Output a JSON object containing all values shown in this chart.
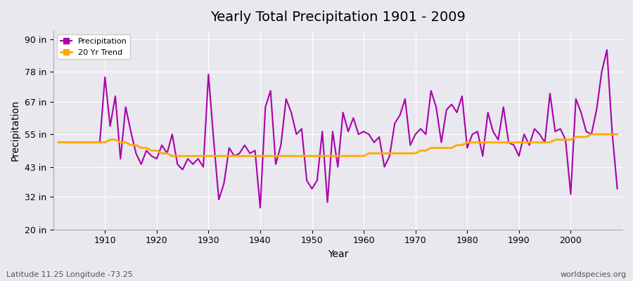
{
  "title": "Yearly Total Precipitation 1901 - 2009",
  "xlabel": "Year",
  "ylabel": "Precipitation",
  "footnote_left": "Latitude 11.25 Longitude -73.25",
  "footnote_right": "worldspecies.org",
  "bg_color": "#e8e8ee",
  "plot_bg_color": "#e8e8ee",
  "precip_color": "#aa00aa",
  "trend_color": "#ffaa00",
  "yticks": [
    20,
    32,
    43,
    55,
    67,
    78,
    90
  ],
  "ytick_labels": [
    "20 in",
    "32 in",
    "43 in",
    "55 in",
    "67 in",
    "78 in",
    "90 in"
  ],
  "ylim": [
    20,
    93
  ],
  "xlim": [
    1900,
    2010
  ],
  "years": [
    1901,
    1902,
    1903,
    1904,
    1905,
    1906,
    1907,
    1908,
    1909,
    1910,
    1911,
    1912,
    1913,
    1914,
    1915,
    1916,
    1917,
    1918,
    1919,
    1920,
    1921,
    1922,
    1923,
    1924,
    1925,
    1926,
    1927,
    1928,
    1929,
    1930,
    1931,
    1932,
    1933,
    1934,
    1935,
    1936,
    1937,
    1938,
    1939,
    1940,
    1941,
    1942,
    1943,
    1944,
    1945,
    1946,
    1947,
    1948,
    1949,
    1950,
    1951,
    1952,
    1953,
    1954,
    1955,
    1956,
    1957,
    1958,
    1959,
    1960,
    1961,
    1962,
    1963,
    1964,
    1965,
    1966,
    1967,
    1968,
    1969,
    1970,
    1971,
    1972,
    1973,
    1974,
    1975,
    1976,
    1977,
    1978,
    1979,
    1980,
    1981,
    1982,
    1983,
    1984,
    1985,
    1986,
    1987,
    1988,
    1989,
    1990,
    1991,
    1992,
    1993,
    1994,
    1995,
    1996,
    1997,
    1998,
    1999,
    2000,
    2001,
    2002,
    2003,
    2004,
    2005,
    2006,
    2007,
    2008,
    2009
  ],
  "precip": [
    52,
    52,
    52,
    52,
    52,
    52,
    52,
    52,
    52,
    76,
    58,
    69,
    46,
    65,
    56,
    48,
    44,
    49,
    47,
    46,
    51,
    48,
    55,
    44,
    42,
    46,
    44,
    46,
    43,
    77,
    53,
    31,
    37,
    50,
    47,
    48,
    51,
    48,
    49,
    28,
    65,
    71,
    44,
    51,
    68,
    63,
    55,
    57,
    38,
    35,
    38,
    56,
    30,
    56,
    43,
    63,
    56,
    61,
    55,
    56,
    55,
    52,
    54,
    43,
    47,
    59,
    62,
    68,
    51,
    55,
    57,
    55,
    71,
    65,
    52,
    64,
    66,
    63,
    69,
    50,
    55,
    56,
    47,
    63,
    56,
    53,
    65,
    52,
    51,
    47,
    55,
    51,
    57,
    55,
    52,
    70,
    56,
    57,
    53,
    33,
    68,
    63,
    56,
    55,
    64,
    78,
    86,
    56,
    35
  ],
  "trend": [
    52,
    52,
    52,
    52,
    52,
    52,
    52,
    52,
    52,
    52,
    53,
    53,
    52,
    52,
    51,
    51,
    50,
    50,
    49,
    49,
    48,
    48,
    47,
    47,
    47,
    47,
    47,
    47,
    47,
    47,
    47,
    47,
    47,
    47,
    47,
    47,
    47,
    47,
    47,
    47,
    47,
    47,
    47,
    47,
    47,
    47,
    47,
    47,
    47,
    47,
    47,
    47,
    47,
    47,
    47,
    47,
    47,
    47,
    47,
    47,
    48,
    48,
    48,
    48,
    48,
    48,
    48,
    48,
    48,
    48,
    49,
    49,
    50,
    50,
    50,
    50,
    50,
    51,
    51,
    52,
    52,
    52,
    52,
    52,
    52,
    52,
    52,
    52,
    52,
    52,
    52,
    52,
    52,
    52,
    52,
    52,
    53,
    53,
    53,
    53,
    54,
    54,
    54,
    55,
    55,
    55,
    55,
    55,
    55
  ]
}
